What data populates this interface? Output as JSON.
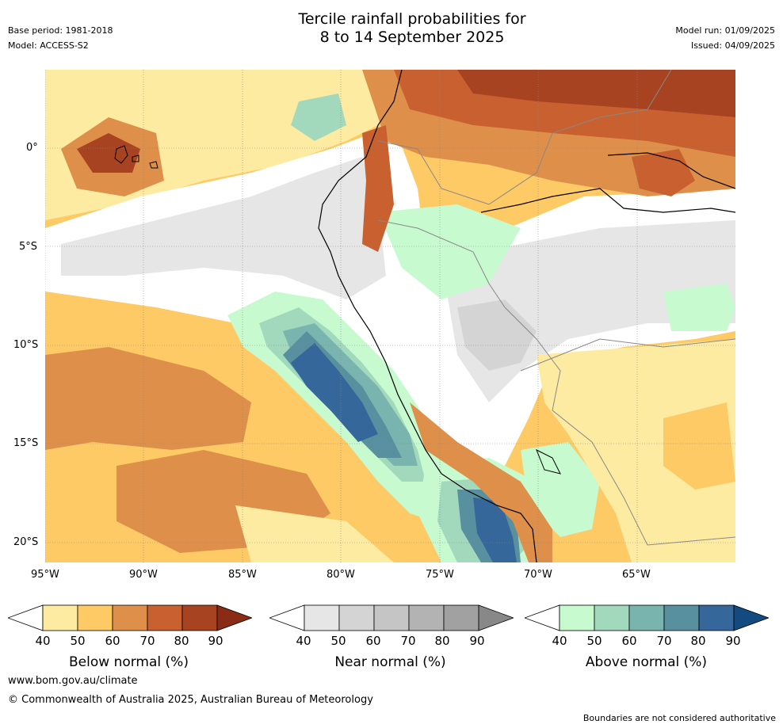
{
  "header": {
    "title_line1": "Tercile rainfall probabilities for",
    "title_line2": "8 to 14 September 2025",
    "base_period": "Base period: 1981-2018",
    "model": "Model: ACCESS-S2",
    "model_run": "Model run: 01/09/2025",
    "issued": "Issued: 04/09/2025"
  },
  "map": {
    "lat_labels": [
      "0°",
      "5°S",
      "10°S",
      "15°S",
      "20°S"
    ],
    "lon_labels": [
      "95°W",
      "90°W",
      "85°W",
      "80°W",
      "75°W",
      "70°W",
      "65°W"
    ]
  },
  "legends": [
    {
      "title": "Below normal (%)",
      "ticks": [
        "40",
        "50",
        "60",
        "70",
        "80",
        "90"
      ],
      "colors": [
        "#ffffff",
        "#feeba2",
        "#fdca66",
        "#de904a",
        "#c8602f",
        "#a84322",
        "#8a2c15"
      ]
    },
    {
      "title": "Near normal (%)",
      "ticks": [
        "40",
        "50",
        "60",
        "70",
        "80",
        "90"
      ],
      "colors": [
        "#ffffff",
        "#e6e6e6",
        "#d4d4d4",
        "#c5c5c5",
        "#b3b3b3",
        "#a1a1a1",
        "#888888"
      ]
    },
    {
      "title": "Above normal (%)",
      "ticks": [
        "40",
        "50",
        "60",
        "70",
        "80",
        "90"
      ],
      "colors": [
        "#ffffff",
        "#c8fad0",
        "#a2d9bd",
        "#79b4ae",
        "#58909f",
        "#35679a",
        "#134a80"
      ]
    }
  ],
  "footer": {
    "website": "www.bom.gov.au/climate",
    "copyright": "© Commonwealth of Australia 2025, Australian Bureau of Meteorology",
    "disclaimer": "Boundaries are not considered authoritative"
  }
}
